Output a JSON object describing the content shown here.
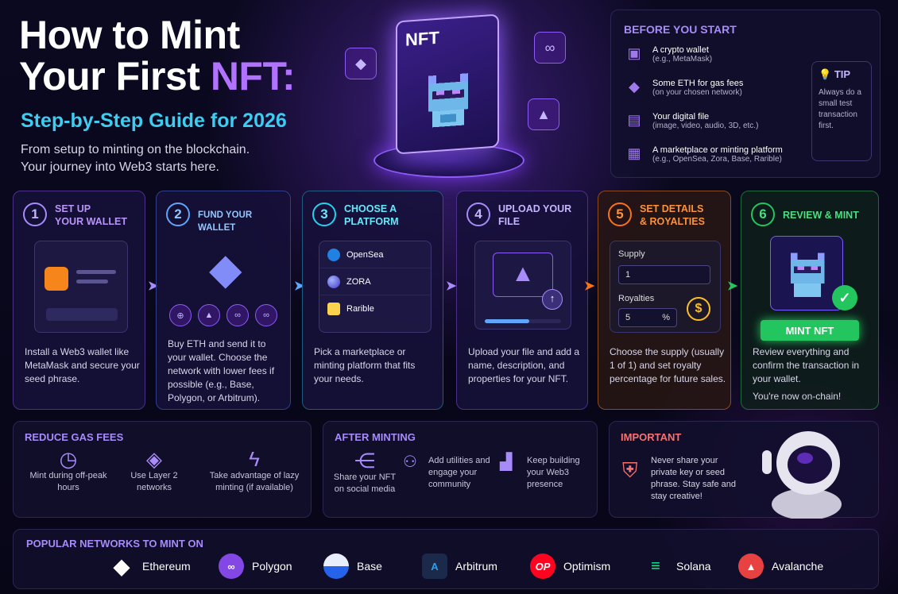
{
  "header": {
    "title_line1": "How to Mint",
    "title_line2a": "Your First ",
    "title_line2b": "NFT:",
    "subtitle": "Step-by-Step Guide for 2026",
    "desc1": "From setup to minting on the blockchain.",
    "desc2": "Your journey into Web3 starts here."
  },
  "hero": {
    "nft_label": "NFT"
  },
  "before": {
    "title": "BEFORE YOU START",
    "items": [
      {
        "t1": "A crypto wallet",
        "t2": "(e.g., MetaMask)"
      },
      {
        "t1": "Some ETH for gas fees",
        "t2": "(on your chosen network)"
      },
      {
        "t1": "Your digital file",
        "t2": "(image, video, audio, 3D, etc.)"
      },
      {
        "t1": "A marketplace or minting platform",
        "t2": "(e.g., OpenSea, Zora, Base, Rarible)"
      }
    ],
    "tip_title": "TIP",
    "tip_body": "Always do a small test transaction first."
  },
  "steps": [
    {
      "n": "1",
      "h": "SET UP\nYOUR WALLET",
      "b": "Install a Web3 wallet like MetaMask and secure your seed phrase."
    },
    {
      "n": "2",
      "h": "FUND YOUR WALLET",
      "b": "Buy ETH and send it to your wallet. Choose the network with lower fees if possible (e.g., Base, Polygon, or Arbitrum)."
    },
    {
      "n": "3",
      "h": "CHOOSE A\nPLATFORM",
      "b": "Pick a marketplace or minting platform that fits your needs."
    },
    {
      "n": "4",
      "h": "UPLOAD YOUR\nFILE",
      "b": "Upload your file and add a name, description, and properties for your NFT."
    },
    {
      "n": "5",
      "h": "SET DETAILS\n& ROYALTIES",
      "b": "Choose the supply (usually 1 of 1) and set royalty percentage for future sales."
    },
    {
      "n": "6",
      "h": "REVIEW & MINT",
      "b": "Review everything and confirm the transaction in your wallet.",
      "b2": "You're now on-chain!"
    }
  ],
  "platforms": [
    "OpenSea",
    "ZORA",
    "Rarible"
  ],
  "details": {
    "supply_label": "Supply",
    "supply_value": "1",
    "royalties_label": "Royalties",
    "royalties_value": "5",
    "royalties_unit": "%"
  },
  "mint_button": "MINT NFT",
  "gas": {
    "title": "REDUCE GAS FEES",
    "items": [
      "Mint during off-peak hours",
      "Use Layer 2 networks",
      "Take advantage of lazy minting (if available)"
    ]
  },
  "after": {
    "title": "AFTER MINTING",
    "items": [
      "Share your NFT on social media",
      "Add utilities and engage your community",
      "Keep building your Web3 presence"
    ]
  },
  "important": {
    "title": "IMPORTANT",
    "body": "Never share your private key or seed phrase. Stay safe and stay creative!"
  },
  "networks": {
    "title": "POPULAR NETWORKS TO MINT ON",
    "items": [
      {
        "name": "Ethereum",
        "color": "#1f1f2e"
      },
      {
        "name": "Polygon",
        "color": "#8247e5"
      },
      {
        "name": "Base",
        "color": "#2563eb"
      },
      {
        "name": "Arbitrum",
        "color": "#1b2a4a"
      },
      {
        "name": "Optimism",
        "color": "#ff0420"
      },
      {
        "name": "Solana",
        "color": "#14f195"
      },
      {
        "name": "Avalanche",
        "color": "#e84142"
      }
    ]
  }
}
